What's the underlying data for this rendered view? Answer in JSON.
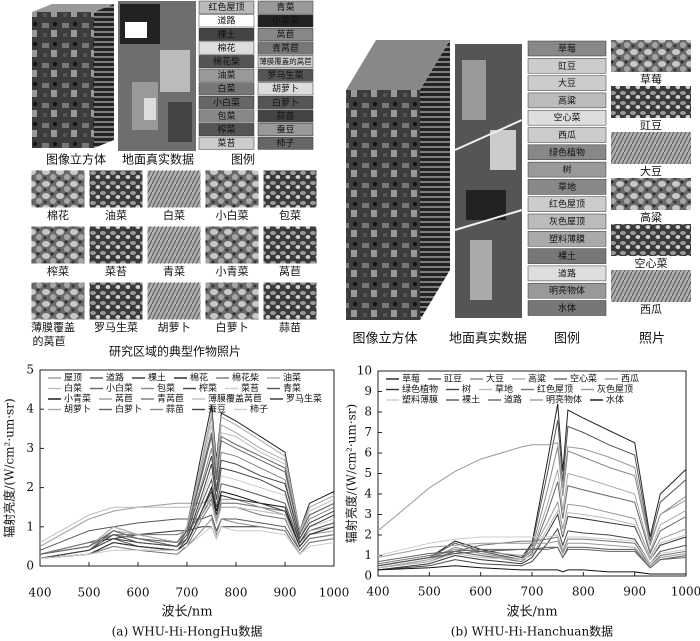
{
  "panel_a": {
    "legend_items": [
      {
        "label": "红色屋顶",
        "color": "#bbbbbb"
      },
      {
        "label": "道路",
        "color": "#ffffff"
      },
      {
        "label": "棵土",
        "color": "#444444"
      },
      {
        "label": "棉花",
        "color": "#dddddd"
      },
      {
        "label": "棉花柴",
        "color": "#555555"
      },
      {
        "label": "油菜",
        "color": "#999999"
      },
      {
        "label": "白菜",
        "color": "#777777"
      },
      {
        "label": "小白菜",
        "color": "#666666"
      },
      {
        "label": "包菜",
        "color": "#888888"
      },
      {
        "label": "榨菜",
        "color": "#555555"
      },
      {
        "label": "菜苔",
        "color": "#cccccc"
      },
      {
        "label": "青菜",
        "color": "#999999"
      },
      {
        "label": "小青菜",
        "color": "#222222"
      },
      {
        "label": "莴苣",
        "color": "#888888"
      },
      {
        "label": "青莴苣",
        "color": "#777777"
      },
      {
        "label": "薄膜覆盖的莴苣",
        "color": "#cccccc"
      },
      {
        "label": "罗马生菜",
        "color": "#555555"
      },
      {
        "label": "胡萝卜",
        "color": "#dddddd"
      },
      {
        "label": "白萝卜",
        "color": "#555555"
      },
      {
        "label": "蒜苗",
        "color": "#444444"
      },
      {
        "label": "蚕豆",
        "color": "#999999"
      },
      {
        "label": "柿子",
        "color": "#666666"
      }
    ],
    "captions": [
      "图像立方体",
      "地面真实数据",
      "图例"
    ],
    "photos": [
      "棉花",
      "油菜",
      "白菜",
      "小白菜",
      "包菜",
      "榨菜",
      "菜苔",
      "青菜",
      "小青菜",
      "莴苣",
      "薄膜覆盖的莴苣",
      "罗马生菜",
      "胡萝卜",
      "白萝卜",
      "蒜苗"
    ],
    "photo_caption": "研究区域的典型作物照片"
  },
  "panel_b": {
    "legend_items": [
      {
        "label": "草莓",
        "color": "#888888"
      },
      {
        "label": "豇豆",
        "color": "#cccccc"
      },
      {
        "label": "大豆",
        "color": "#cccccc"
      },
      {
        "label": "高粱",
        "color": "#bbbbbb"
      },
      {
        "label": "空心菜",
        "color": "#dddddd"
      },
      {
        "label": "西瓜",
        "color": "#cccccc"
      },
      {
        "label": "绿色植物",
        "color": "#888888"
      },
      {
        "label": "树",
        "color": "#999999"
      },
      {
        "label": "草地",
        "color": "#888888"
      },
      {
        "label": "红色屋顶",
        "color": "#cccccc"
      },
      {
        "label": "灰色屋顶",
        "color": "#bbbbbb"
      },
      {
        "label": "塑料薄膜",
        "color": "#aaaaaa"
      },
      {
        "label": "裸土",
        "color": "#777777"
      },
      {
        "label": "道路",
        "color": "#dddddd"
      },
      {
        "label": "明亮物体",
        "color": "#999999"
      },
      {
        "label": "水体",
        "color": "#777777"
      }
    ],
    "captions": [
      "图像立方体",
      "地面真实数据",
      "图例",
      "照片"
    ],
    "photos": [
      "草莓",
      "豇豆",
      "大豆",
      "高粱",
      "空心菜",
      "西瓜"
    ]
  },
  "chart_data": [
    {
      "type": "line",
      "caption": "(a) WHU-Hi-HongHu数据",
      "x_label": "波长/nm",
      "y_label": "辐射亮度/(W/cm²·um·sr)",
      "xlim": [
        400,
        1000
      ],
      "xticks": [
        400,
        500,
        600,
        700,
        800,
        900,
        1000
      ],
      "ylim": [
        0,
        5
      ],
      "yticks": [
        0,
        1,
        2,
        3,
        4,
        5
      ],
      "x": [
        400,
        500,
        550,
        600,
        680,
        700,
        730,
        750,
        760,
        770,
        800,
        850,
        900,
        930,
        950,
        1000
      ],
      "series": [
        {
          "name": "屋顶",
          "color": "#999999",
          "values": [
            0.5,
            1.2,
            1.4,
            1.5,
            1.6,
            1.6,
            1.6,
            1.7,
            1.2,
            1.6,
            1.6,
            1.5,
            1.4,
            0.5,
            0.9,
            1.1
          ]
        },
        {
          "name": "道路",
          "color": "#555555",
          "values": [
            0.4,
            0.9,
            1.0,
            1.1,
            1.2,
            1.2,
            1.2,
            1.3,
            0.9,
            1.2,
            1.2,
            1.1,
            1.0,
            0.4,
            0.7,
            0.8
          ]
        },
        {
          "name": "棵土",
          "color": "#333333",
          "values": [
            0.3,
            0.6,
            0.7,
            0.8,
            0.9,
            0.9,
            1.0,
            1.0,
            0.7,
            1.0,
            1.0,
            1.0,
            0.9,
            0.3,
            0.6,
            0.7
          ]
        },
        {
          "name": "棉花",
          "color": "#222222",
          "values": [
            0.3,
            0.5,
            1.0,
            0.8,
            0.6,
            1.0,
            2.9,
            4.1,
            2.7,
            3.9,
            3.7,
            3.3,
            2.9,
            0.9,
            1.6,
            1.9
          ]
        },
        {
          "name": "棉花柴",
          "color": "#777777",
          "values": [
            0.3,
            0.6,
            0.8,
            0.8,
            0.8,
            0.9,
            1.3,
            1.7,
            1.1,
            1.6,
            1.6,
            1.5,
            1.4,
            0.5,
            0.8,
            1.0
          ]
        },
        {
          "name": "油菜",
          "color": "#aaaaaa",
          "values": [
            0.3,
            0.5,
            0.9,
            0.7,
            0.5,
            0.9,
            2.6,
            3.8,
            2.5,
            3.6,
            3.4,
            3.0,
            2.7,
            0.8,
            1.5,
            1.8
          ]
        },
        {
          "name": "白菜",
          "color": "#bbbbbb",
          "values": [
            0.3,
            0.5,
            1.0,
            0.8,
            0.6,
            1.0,
            2.5,
            3.6,
            2.4,
            3.4,
            3.3,
            2.9,
            2.6,
            0.8,
            1.4,
            1.7
          ]
        },
        {
          "name": "小白菜",
          "color": "#666666",
          "values": [
            0.2,
            0.4,
            0.9,
            0.7,
            0.5,
            0.9,
            2.3,
            3.3,
            2.2,
            3.2,
            3.0,
            2.7,
            2.4,
            0.8,
            1.3,
            1.6
          ]
        },
        {
          "name": "包菜",
          "color": "#888888",
          "values": [
            0.3,
            0.5,
            0.8,
            0.7,
            0.6,
            0.9,
            2.1,
            3.0,
            2.0,
            2.9,
            2.8,
            2.5,
            2.2,
            0.7,
            1.2,
            1.5
          ]
        },
        {
          "name": "榨菜",
          "color": "#444444",
          "values": [
            0.2,
            0.4,
            0.8,
            0.6,
            0.5,
            0.8,
            2.0,
            2.8,
            1.9,
            2.7,
            2.6,
            2.3,
            2.1,
            0.7,
            1.1,
            1.4
          ]
        },
        {
          "name": "菜苔",
          "color": "#cccccc",
          "values": [
            0.2,
            0.4,
            0.7,
            0.6,
            0.5,
            0.7,
            1.7,
            2.4,
            1.6,
            2.3,
            2.2,
            2.0,
            1.8,
            0.6,
            1.0,
            1.2
          ]
        },
        {
          "name": "青菜",
          "color": "#555555",
          "values": [
            0.2,
            0.4,
            0.7,
            0.5,
            0.4,
            0.7,
            1.6,
            2.2,
            1.5,
            2.1,
            2.0,
            1.8,
            1.6,
            0.6,
            0.9,
            1.1
          ]
        },
        {
          "name": "小青菜",
          "color": "#111111",
          "values": [
            0.2,
            0.3,
            0.6,
            0.5,
            0.4,
            0.6,
            1.4,
            2.0,
            1.4,
            1.9,
            1.8,
            1.6,
            1.5,
            0.5,
            0.8,
            1.0
          ]
        },
        {
          "name": "莴苣",
          "color": "#999999",
          "values": [
            0.2,
            0.3,
            0.6,
            0.5,
            0.4,
            0.6,
            1.3,
            1.8,
            1.2,
            1.7,
            1.7,
            1.5,
            1.3,
            0.5,
            0.8,
            0.9
          ]
        },
        {
          "name": "青莴苣",
          "color": "#777777",
          "values": [
            0.2,
            0.3,
            0.5,
            0.4,
            0.3,
            0.5,
            1.2,
            1.6,
            1.1,
            1.5,
            1.5,
            1.3,
            1.2,
            0.4,
            0.7,
            0.8
          ]
        },
        {
          "name": "薄膜覆盖莴苣",
          "color": "#bbbbbb",
          "values": [
            0.6,
            1.3,
            1.5,
            1.5,
            1.5,
            1.5,
            1.5,
            1.6,
            1.1,
            1.5,
            1.5,
            1.4,
            1.3,
            0.5,
            0.9,
            1.0
          ]
        },
        {
          "name": "罗马生菜",
          "color": "#333333",
          "values": [
            0.2,
            0.3,
            0.6,
            0.5,
            0.4,
            0.6,
            1.4,
            1.9,
            1.3,
            1.8,
            1.7,
            1.6,
            1.4,
            0.5,
            0.8,
            1.0
          ]
        },
        {
          "name": "胡萝卜",
          "color": "#aaaaaa",
          "values": [
            0.3,
            0.5,
            0.9,
            0.8,
            0.6,
            1.0,
            2.7,
            3.9,
            2.6,
            3.8,
            3.6,
            3.2,
            2.8,
            0.9,
            1.5,
            1.8
          ]
        },
        {
          "name": "白萝卜",
          "color": "#666666",
          "values": [
            0.3,
            0.5,
            0.9,
            0.7,
            0.6,
            0.9,
            2.4,
            3.4,
            2.3,
            3.3,
            3.1,
            2.8,
            2.5,
            0.8,
            1.3,
            1.6
          ]
        },
        {
          "name": "蒜苗",
          "color": "#888888",
          "values": [
            0.2,
            0.3,
            0.5,
            0.4,
            0.4,
            0.5,
            0.9,
            1.2,
            0.8,
            1.2,
            1.1,
            1.0,
            0.9,
            0.3,
            0.6,
            0.7
          ]
        },
        {
          "name": "蚕豆",
          "color": "#444444",
          "values": [
            0.2,
            0.4,
            0.7,
            0.6,
            0.5,
            0.7,
            1.8,
            2.6,
            1.7,
            2.5,
            2.4,
            2.2,
            1.9,
            0.6,
            1.0,
            1.3
          ]
        },
        {
          "name": "柿子",
          "color": "#cccccc",
          "values": [
            0.2,
            0.3,
            0.4,
            0.4,
            0.4,
            0.5,
            0.8,
            1.0,
            0.7,
            1.0,
            0.9,
            0.9,
            0.8,
            0.3,
            0.5,
            0.6
          ]
        }
      ]
    },
    {
      "type": "line",
      "caption": "(b) WHU-Hi-Hanchuan数据",
      "x_label": "波长/nm",
      "y_label": "辐射亮度/(W/cm²·um·sr)",
      "xlim": [
        400,
        1000
      ],
      "xticks": [
        400,
        500,
        600,
        700,
        800,
        900,
        1000
      ],
      "ylim": [
        0,
        10
      ],
      "yticks": [
        0,
        1,
        2,
        3,
        4,
        5,
        6,
        7,
        8,
        9,
        10
      ],
      "x": [
        400,
        500,
        550,
        600,
        680,
        700,
        730,
        750,
        760,
        770,
        800,
        850,
        900,
        930,
        950,
        1000
      ],
      "series": [
        {
          "name": "草莓",
          "color": "#222222",
          "values": [
            0.5,
            0.9,
            1.7,
            1.3,
            0.9,
            1.6,
            5.6,
            8.4,
            5.1,
            8.1,
            7.7,
            7.1,
            6.5,
            1.9,
            4.0,
            5.2
          ]
        },
        {
          "name": "豇豆",
          "color": "#555555",
          "values": [
            0.5,
            0.9,
            1.6,
            1.2,
            0.8,
            1.5,
            5.0,
            7.6,
            4.6,
            7.3,
            7.0,
            6.4,
            5.9,
            1.7,
            3.6,
            4.7
          ]
        },
        {
          "name": "大豆",
          "color": "#888888",
          "values": [
            0.4,
            0.8,
            1.4,
            1.1,
            0.8,
            1.3,
            4.2,
            6.3,
            3.9,
            6.1,
            5.8,
            5.3,
            4.9,
            1.5,
            3.0,
            3.9
          ]
        },
        {
          "name": "高粱",
          "color": "#aaaaaa",
          "values": [
            0.4,
            0.8,
            1.2,
            1.0,
            0.8,
            1.2,
            3.5,
            5.2,
            3.2,
            5.0,
            4.8,
            4.4,
            4.0,
            1.2,
            2.5,
            3.2
          ]
        },
        {
          "name": "空心菜",
          "color": "#666666",
          "values": [
            0.4,
            0.7,
            1.2,
            1.0,
            0.7,
            1.1,
            3.1,
            4.6,
            2.8,
            4.4,
            4.2,
            3.9,
            3.6,
            1.1,
            2.2,
            2.9
          ]
        },
        {
          "name": "西瓜",
          "color": "#999999",
          "values": [
            0.5,
            0.9,
            1.3,
            1.2,
            1.0,
            1.2,
            2.6,
            3.6,
            2.3,
            3.5,
            3.4,
            3.1,
            2.8,
            0.9,
            1.8,
            2.3
          ]
        },
        {
          "name": "绿色植物",
          "color": "#333333",
          "values": [
            0.3,
            0.6,
            1.0,
            0.8,
            0.6,
            0.9,
            2.1,
            3.0,
            1.9,
            2.9,
            2.8,
            2.6,
            2.4,
            0.8,
            1.5,
            1.9
          ]
        },
        {
          "name": "树",
          "color": "#444444",
          "values": [
            0.3,
            0.5,
            0.8,
            0.6,
            0.5,
            0.7,
            1.6,
            2.3,
            1.5,
            2.2,
            2.1,
            2.0,
            1.8,
            0.6,
            1.2,
            1.5
          ]
        },
        {
          "name": "草地",
          "color": "#bbbbbb",
          "values": [
            0.4,
            0.7,
            1.1,
            0.9,
            0.8,
            1.0,
            2.3,
            3.2,
            2.0,
            3.1,
            3.0,
            2.8,
            2.5,
            0.8,
            1.6,
            2.0
          ]
        },
        {
          "name": "红色屋顶",
          "color": "#777777",
          "values": [
            0.6,
            1.0,
            1.2,
            1.5,
            1.7,
            1.7,
            1.8,
            1.9,
            1.2,
            1.8,
            1.8,
            1.7,
            1.6,
            0.5,
            1.0,
            1.2
          ]
        },
        {
          "name": "灰色屋顶",
          "color": "#999999",
          "values": [
            0.9,
            1.4,
            1.5,
            1.6,
            1.6,
            1.6,
            1.6,
            1.7,
            1.1,
            1.6,
            1.6,
            1.5,
            1.4,
            0.5,
            0.9,
            1.1
          ]
        },
        {
          "name": "塑料薄膜",
          "color": "#cccccc",
          "values": [
            1.0,
            1.6,
            1.8,
            1.9,
            1.9,
            1.9,
            1.9,
            2.0,
            1.3,
            1.9,
            1.9,
            1.8,
            1.7,
            0.6,
            1.1,
            1.3
          ]
        },
        {
          "name": "裸土",
          "color": "#555555",
          "values": [
            0.5,
            0.9,
            1.1,
            1.2,
            1.3,
            1.3,
            1.4,
            1.4,
            0.9,
            1.4,
            1.4,
            1.3,
            1.3,
            0.4,
            0.8,
            1.0
          ]
        },
        {
          "name": "道路",
          "color": "#666666",
          "values": [
            0.7,
            1.1,
            1.2,
            1.3,
            1.3,
            1.3,
            1.3,
            1.4,
            0.9,
            1.3,
            1.3,
            1.2,
            1.2,
            0.4,
            0.8,
            0.9
          ]
        },
        {
          "name": "明亮物体",
          "color": "#999999",
          "values": [
            2.2,
            4.3,
            5.1,
            5.7,
            6.3,
            6.4,
            6.4,
            6.5,
            4.3,
            6.3,
            6.2,
            5.8,
            5.3,
            1.6,
            3.0,
            3.7
          ]
        },
        {
          "name": "水体",
          "color": "#111111",
          "values": [
            0.3,
            0.4,
            0.5,
            0.4,
            0.3,
            0.3,
            0.3,
            0.3,
            0.2,
            0.3,
            0.3,
            0.2,
            0.2,
            0.1,
            0.1,
            0.1
          ]
        }
      ]
    }
  ]
}
